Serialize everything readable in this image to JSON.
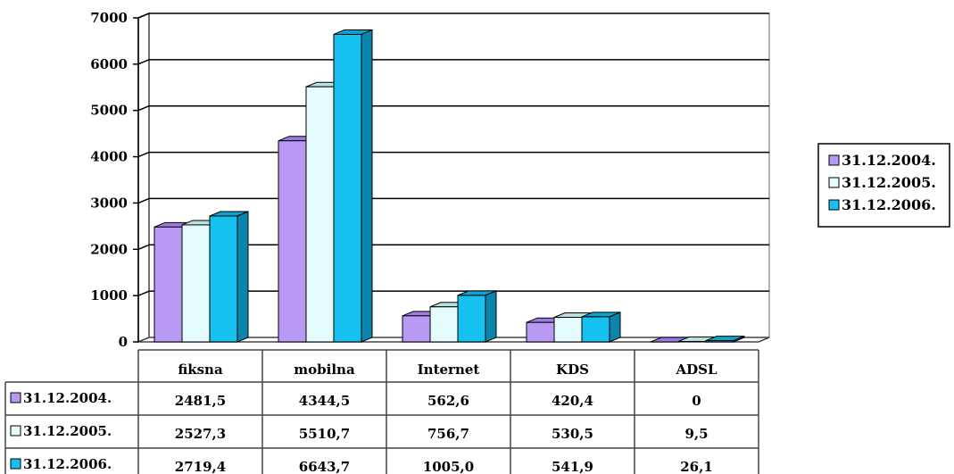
{
  "chart_data": {
    "type": "bar",
    "title": "",
    "xlabel": "",
    "ylabel": "",
    "categories": [
      "fiksna",
      "mobilna",
      "Internet",
      "KDS",
      "ADSL"
    ],
    "series": [
      {
        "name": "31.12.2004.",
        "values": [
          2481.5,
          4344.5,
          562.6,
          420.4,
          0
        ],
        "labels": [
          "2481,5",
          "4344,5",
          "562,6",
          "420,4",
          "0"
        ],
        "color": "#b89af4",
        "side": "#7a55c8",
        "top": "#9c7ae0"
      },
      {
        "name": "31.12.2005.",
        "values": [
          2527.3,
          5510.7,
          756.7,
          530.5,
          9.5
        ],
        "labels": [
          "2527,3",
          "5510,7",
          "756,7",
          "530,5",
          "9,5"
        ],
        "color": "#e4fdfc",
        "side": "#a8d4d2",
        "top": "#b5e2e0"
      },
      {
        "name": "31.12.2006.",
        "values": [
          2719.4,
          6643.7,
          1005.0,
          541.9,
          26.1
        ],
        "labels": [
          "2719,4",
          "6643,7",
          "1005,0",
          "541,9",
          "26,1"
        ],
        "color": "#16c0ef",
        "side": "#0a86ad",
        "top": "#0ea2cd"
      }
    ],
    "yticks": [
      "0",
      "1000",
      "2000",
      "3000",
      "4000",
      "5000",
      "6000",
      "7000"
    ],
    "ylim": [
      0,
      7000
    ],
    "grid": true,
    "legend": "right",
    "data_table": true
  }
}
